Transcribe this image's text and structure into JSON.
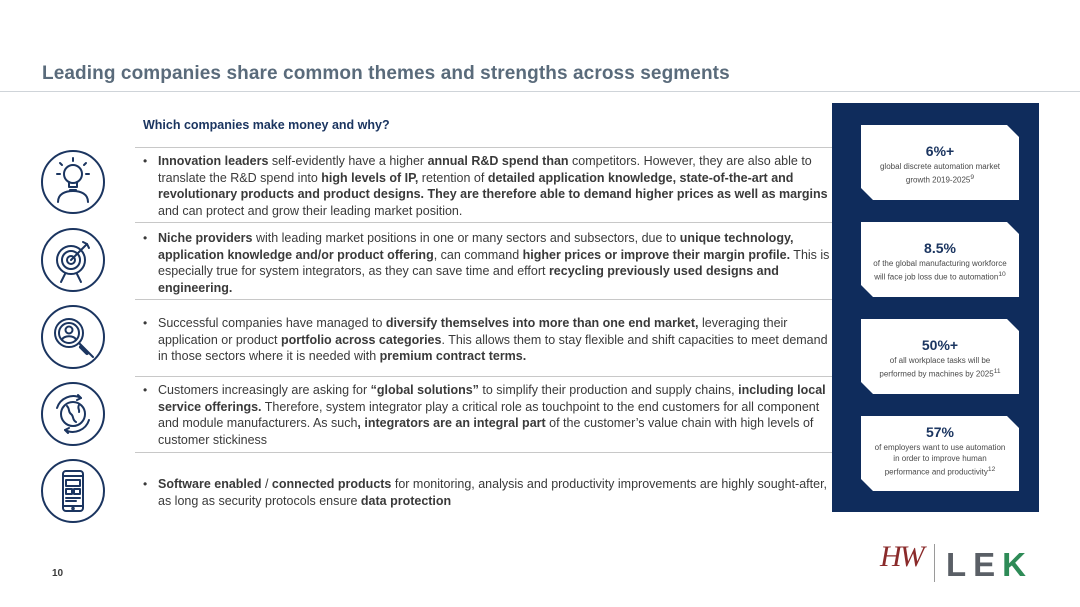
{
  "header": {
    "title": "Leading companies share common themes and strengths across segments"
  },
  "section": {
    "subheading": "Which companies make money and why?"
  },
  "rows": [
    {
      "icon": "lightbulb-head-icon",
      "bullet": "•",
      "segments": [
        {
          "text": "Innovation leaders",
          "bold": true
        },
        {
          "text": " self-evidently have a higher ",
          "bold": false
        },
        {
          "text": "annual R&D spend than",
          "bold": true
        },
        {
          "text": " competitors. However, they are also able to translate the R&D spend into ",
          "bold": false
        },
        {
          "text": "high levels of IP,",
          "bold": true
        },
        {
          "text": " retention of ",
          "bold": false
        },
        {
          "text": "detailed application knowledge, state-of-the-art and revolutionary products and product designs. They are therefore able to demand higher prices as well as margins",
          "bold": true
        },
        {
          "text": " and can protect and grow their leading market position.",
          "bold": false
        }
      ]
    },
    {
      "icon": "target-icon",
      "bullet": "•",
      "segments": [
        {
          "text": "Niche providers",
          "bold": true
        },
        {
          "text": " with leading market positions in one or many sectors and subsectors, due to ",
          "bold": false
        },
        {
          "text": "unique technology, application knowledge and/or product offering",
          "bold": true
        },
        {
          "text": ", can command ",
          "bold": false
        },
        {
          "text": "higher prices or improve their margin profile.",
          "bold": true
        },
        {
          "text": " This is especially true for system integrators, as they can save time and effort ",
          "bold": false
        },
        {
          "text": "recycling previously used designs and engineering.",
          "bold": true
        }
      ]
    },
    {
      "icon": "magnifier-person-icon",
      "bullet": "•",
      "segments": [
        {
          "text": "Successful companies have managed to ",
          "bold": false
        },
        {
          "text": "diversify themselves into more than one end market,",
          "bold": true
        },
        {
          "text": " leveraging their application or product ",
          "bold": false
        },
        {
          "text": "portfolio across categories",
          "bold": true
        },
        {
          "text": ". This allows them to stay flexible and shift capacities to meet demand in those sectors where it is needed with ",
          "bold": false
        },
        {
          "text": "premium contract terms.",
          "bold": true
        }
      ]
    },
    {
      "icon": "globe-arrows-icon",
      "bullet": "•",
      "segments": [
        {
          "text": "Customers increasingly are asking for ",
          "bold": false
        },
        {
          "text": "“global solutions”",
          "bold": true
        },
        {
          "text": " to simplify their production and supply chains, ",
          "bold": false
        },
        {
          "text": "including local service offerings.",
          "bold": true
        },
        {
          "text": " Therefore, system integrator play a critical role as touchpoint to the end customers for all component and module manufacturers. As such",
          "bold": false
        },
        {
          "text": ", integrators are an integral part",
          "bold": true
        },
        {
          "text": " of the customer’s value chain with high levels of customer stickiness",
          "bold": false
        }
      ]
    },
    {
      "icon": "smartphone-icon",
      "bullet": "•",
      "segments": [
        {
          "text": "Software enabled",
          "bold": true
        },
        {
          "text": " / ",
          "bold": false
        },
        {
          "text": "connected products",
          "bold": true
        },
        {
          "text": " for monitoring, analysis and productivity improvements are highly sought-after, as long as security protocols ensure ",
          "bold": false
        },
        {
          "text": "data protection",
          "bold": true
        }
      ]
    }
  ],
  "stats": [
    {
      "value": "6%+",
      "caption": "global discrete automation market growth 2019-2025",
      "sup": "9"
    },
    {
      "value": "8.5%",
      "caption": "of the global manufacturing workforce will face job loss due to automation",
      "sup": "10"
    },
    {
      "value": "50%+",
      "caption": "of all workplace tasks will be performed by machines by 2025",
      "sup": "11"
    },
    {
      "value": "57%",
      "caption": "of employers want to use automation in order to improve human performance and productivity",
      "sup": "12"
    }
  ],
  "footer": {
    "page_number": "10",
    "logo_hw": "HW",
    "logo_lek_left": "LE",
    "logo_lek_right": "K"
  },
  "colors": {
    "navy": "#0f2c5c",
    "title_gray": "#5a6b7b",
    "logo_green": "#2e8b57",
    "logo_red": "#8a2a2a"
  }
}
